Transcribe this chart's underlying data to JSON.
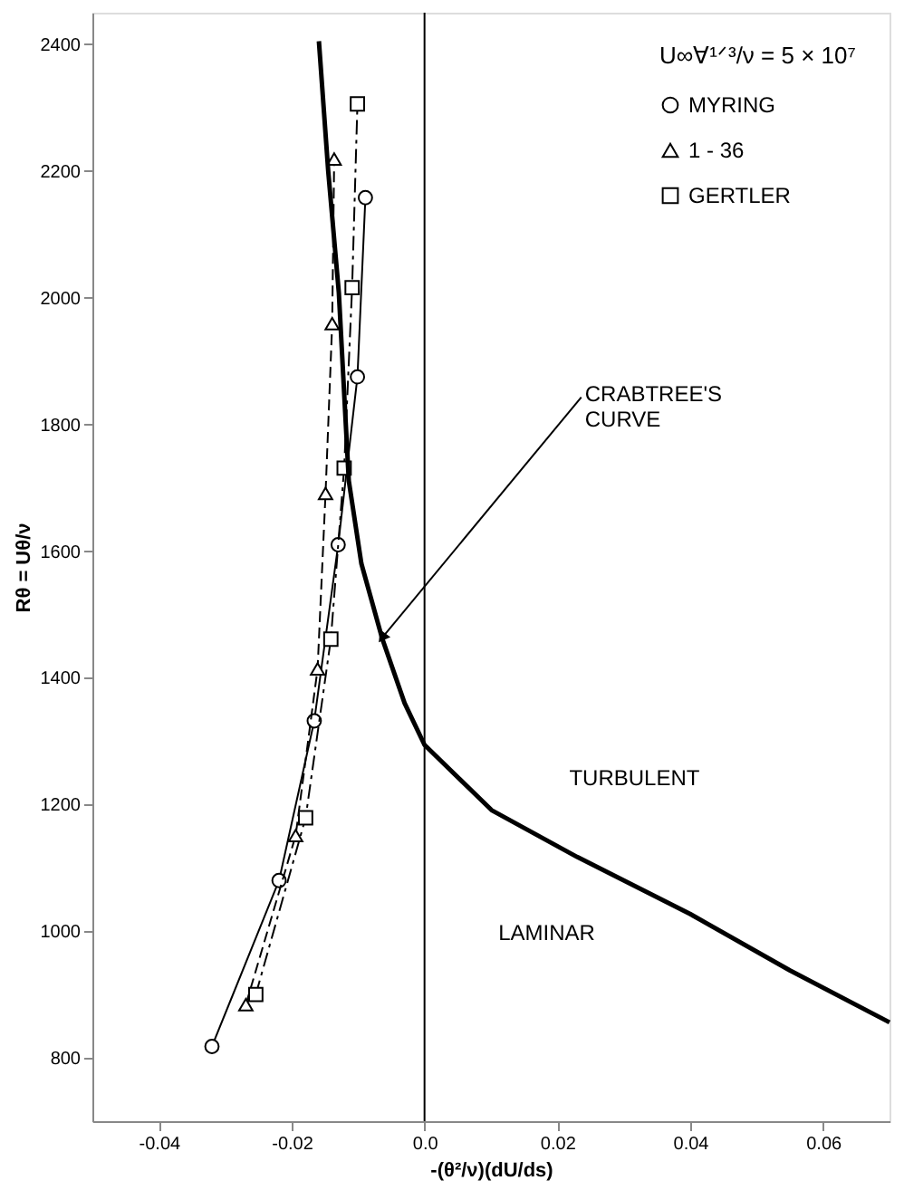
{
  "chart_data": {
    "type": "line",
    "xlabel": "-(θ²/ν)(dU/ds)",
    "ylabel": "Rθ = Uθ/ν",
    "legend_title": "U∞∀¹ᐟ³/ν = 5 × 10⁷",
    "legend": "top right",
    "xlim": [
      -0.05,
      0.07
    ],
    "ylim": [
      700,
      2450
    ],
    "xticks": [
      -0.04,
      -0.02,
      {
        "value": 0,
        "label": "0.0"
      },
      0.02,
      0.04,
      0.06
    ],
    "yticks": [
      800,
      1000,
      1200,
      1400,
      1600,
      1800,
      2000,
      2200,
      2400
    ],
    "grid": false,
    "series": [
      {
        "name": "MYRING",
        "color": "#000000",
        "marker": "circle",
        "line_style": "solid",
        "x": [
          -0.032,
          -0.0219,
          -0.0166,
          -0.013,
          -0.0101,
          -0.0089
        ],
        "values": [
          818,
          1080,
          1332,
          1610,
          1875,
          2158
        ]
      },
      {
        "name": "1 - 36",
        "color": "#000000",
        "marker": "triangle",
        "line_style": "dashed",
        "x": [
          -0.0269,
          -0.0194,
          -0.0161,
          -0.0149,
          -0.0139,
          -0.0136
        ],
        "values": [
          884,
          1151,
          1414,
          1691,
          1959,
          2219
        ]
      },
      {
        "name": "GERTLER",
        "color": "#000000",
        "marker": "square",
        "line_style": "dashdot",
        "x": [
          -0.0254,
          -0.0179,
          -0.0141,
          -0.0121,
          -0.0109,
          -0.0101
        ],
        "values": [
          900,
          1179,
          1461,
          1731,
          2016,
          2306
        ]
      },
      {
        "color": "#000000",
        "marker": "none",
        "line_style": "solid",
        "x": [
          -0.0159,
          -0.0145,
          -0.0129,
          -0.0114,
          -0.0095,
          -0.0064,
          -0.003,
          0.0,
          0.0101,
          0.023,
          0.04,
          0.055,
          0.07
        ],
        "values": [
          2405,
          2200,
          2008,
          1711,
          1580,
          1463,
          1360,
          1294,
          1191,
          1117,
          1027,
          938,
          856
        ]
      }
    ],
    "ref_lines": [
      {
        "axis": "x",
        "value": 0,
        "color": "#000000",
        "line_style": "solid"
      }
    ],
    "annotations": [
      {
        "text": "CRABTREE'S CURVE",
        "x": -0.0064,
        "y": 1463
      },
      "TURBULENT",
      "LAMINAR"
    ]
  }
}
